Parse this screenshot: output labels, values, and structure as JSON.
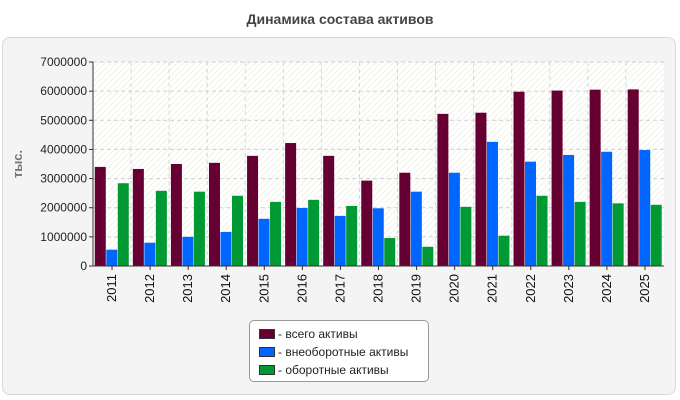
{
  "chart_data": {
    "type": "bar",
    "title": "Динамика состава активов",
    "ylabel": "тыс.",
    "xlabel": "",
    "ylim": [
      0,
      7000000
    ],
    "yticks": [
      0,
      1000000,
      2000000,
      3000000,
      4000000,
      5000000,
      6000000,
      7000000
    ],
    "grid": true,
    "legend_position": "bottom",
    "categories": [
      "2011",
      "2012",
      "2013",
      "2014",
      "2015",
      "2016",
      "2017",
      "2018",
      "2019",
      "2020",
      "2021",
      "2022",
      "2023",
      "2024",
      "2025"
    ],
    "series": [
      {
        "name": "- всего активы",
        "color": "#660033",
        "values": [
          3400000,
          3330000,
          3500000,
          3540000,
          3780000,
          4220000,
          3780000,
          2930000,
          3200000,
          5220000,
          5260000,
          5980000,
          6020000,
          6050000,
          6060000
        ]
      },
      {
        "name": "- внеоборотные активы",
        "color": "#0066ff",
        "values": [
          560000,
          800000,
          1000000,
          1170000,
          1620000,
          1990000,
          1720000,
          1980000,
          2550000,
          3200000,
          4260000,
          3580000,
          3810000,
          3920000,
          3980000
        ]
      },
      {
        "name": "- оборотные активы",
        "color": "#009933",
        "values": [
          2840000,
          2580000,
          2550000,
          2410000,
          2200000,
          2270000,
          2060000,
          960000,
          660000,
          2030000,
          1040000,
          2410000,
          2200000,
          2150000,
          2100000
        ]
      }
    ]
  }
}
